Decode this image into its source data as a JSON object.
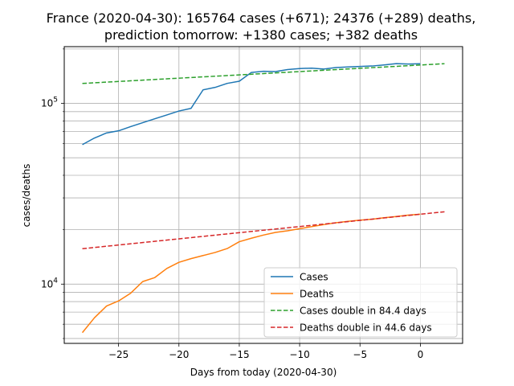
{
  "chart_data": {
    "type": "line",
    "title_line1": "France (2020-04-30): 165764 cases (+671); 24376 (+289) deaths,",
    "title_line2": "prediction tomorrow: +1380 cases;  +382 deaths",
    "xlabel": "Days from today (2020-04-30)",
    "ylabel": "cases/deaths",
    "xlim": [
      -29.5,
      3.5
    ],
    "ylim": [
      4700,
      206000
    ],
    "yscale": "log",
    "grid": true,
    "legend_position": "lower right",
    "x_ticks": [
      {
        "value": -25,
        "label": "−25"
      },
      {
        "value": -20,
        "label": "−20"
      },
      {
        "value": -15,
        "label": "−15"
      },
      {
        "value": -10,
        "label": "−10"
      },
      {
        "value": -5,
        "label": "−5"
      },
      {
        "value": 0,
        "label": "0"
      }
    ],
    "y_major_ticks": [
      {
        "value": 10000,
        "base": "10",
        "exp": "4"
      },
      {
        "value": 100000,
        "base": "10",
        "exp": "5"
      }
    ],
    "y_minor_ticks": [
      5000,
      6000,
      7000,
      8000,
      9000,
      20000,
      30000,
      40000,
      50000,
      60000,
      70000,
      80000,
      90000,
      200000
    ],
    "series": [
      {
        "name": "Cases",
        "color": "#1f77b4",
        "style": "solid",
        "x": [
          -28,
          -27,
          -26,
          -25,
          -24,
          -23,
          -22,
          -21,
          -20,
          -19,
          -18,
          -17,
          -16,
          -15,
          -14,
          -13,
          -12,
          -11,
          -10,
          -9,
          -8,
          -7,
          -6,
          -5,
          -4,
          -3,
          -2,
          -1,
          0
        ],
        "y": [
          59100,
          64300,
          68600,
          70500,
          74400,
          78200,
          82200,
          86300,
          90700,
          93800,
          118800,
          122600,
          129000,
          132600,
          148300,
          150600,
          150000,
          153800,
          155800,
          156700,
          154800,
          157900,
          159000,
          160000,
          161000,
          163200,
          166000,
          165100,
          165764
        ]
      },
      {
        "name": "Deaths",
        "color": "#ff7f0e",
        "style": "solid",
        "x": [
          -28,
          -27,
          -26,
          -25,
          -24,
          -23,
          -22,
          -21,
          -20,
          -19,
          -18,
          -17,
          -16,
          -15,
          -14,
          -13,
          -12,
          -11,
          -10,
          -9,
          -8,
          -7,
          -6,
          -5,
          -4,
          -3,
          -2,
          -1,
          0
        ],
        "y": [
          5390,
          6510,
          7560,
          8070,
          8910,
          10330,
          10870,
          12210,
          13200,
          13830,
          14390,
          14970,
          15730,
          17170,
          17940,
          18680,
          19320,
          19720,
          20260,
          20800,
          21340,
          21860,
          22240,
          22600,
          22860,
          23300,
          23660,
          24087,
          24376
        ]
      },
      {
        "name": "Cases double in 84.4 days",
        "color": "#2ca02c",
        "style": "dashed",
        "x": [
          -28,
          2
        ],
        "y": [
          128900,
          165764
        ]
      },
      {
        "name": "Deaths double in 44.6 days",
        "color": "#d62728",
        "style": "dashed",
        "x": [
          -28,
          2
        ],
        "y": [
          15700,
          25140
        ]
      }
    ]
  }
}
